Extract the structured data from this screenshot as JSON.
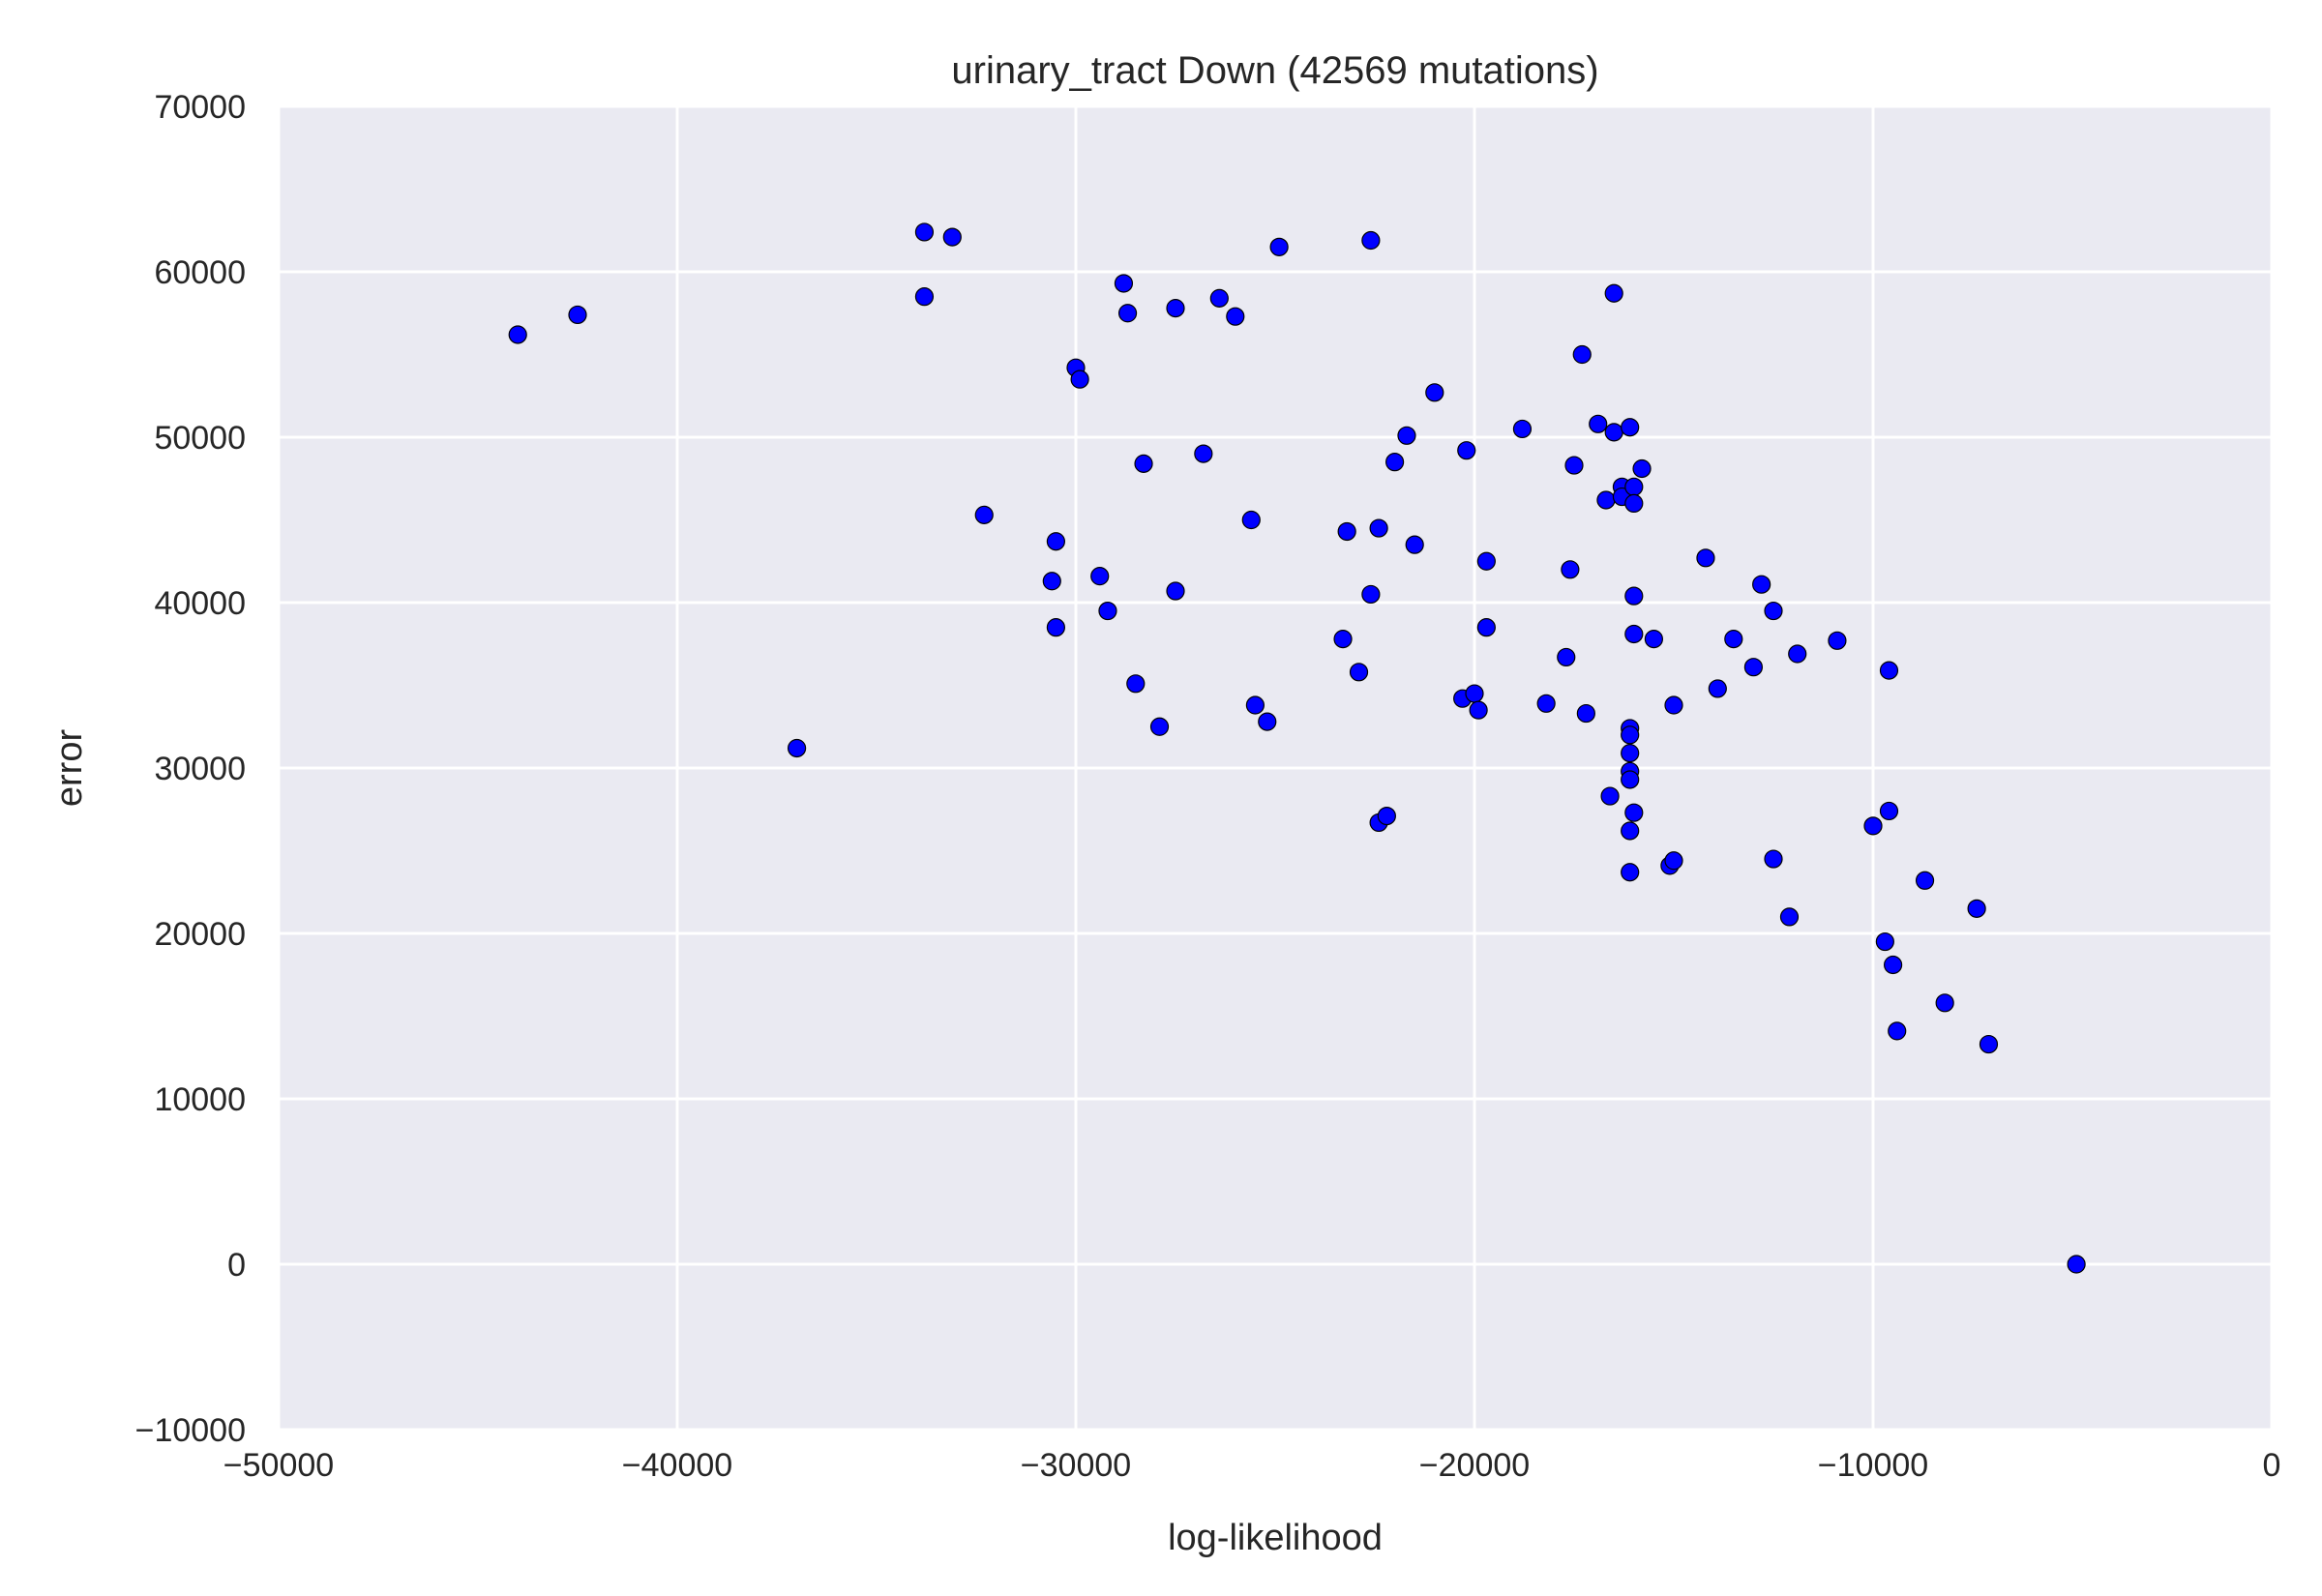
{
  "chart_data": {
    "type": "scatter",
    "title": "urinary_tract Down (42569 mutations)",
    "xlabel": "log-likelihood",
    "ylabel": "error",
    "xlim": [
      -50000,
      0
    ],
    "ylim": [
      -10000,
      70000
    ],
    "xticks": [
      -50000,
      -40000,
      -30000,
      -20000,
      -10000,
      0
    ],
    "yticks": [
      -10000,
      0,
      10000,
      20000,
      30000,
      40000,
      50000,
      60000,
      70000
    ],
    "xtick_labels": [
      "−50000",
      "−40000",
      "−30000",
      "−20000",
      "−10000",
      "0"
    ],
    "ytick_labels": [
      "−10000",
      "0",
      "10000",
      "20000",
      "30000",
      "40000",
      "50000",
      "60000",
      "70000"
    ],
    "grid": true,
    "background_color": "#eaeaf2",
    "point_color": "#0000ff",
    "series": [
      {
        "points": [
          [
            -44000,
            56200
          ],
          [
            -42500,
            57400
          ],
          [
            -37000,
            31200
          ],
          [
            -33800,
            62400
          ],
          [
            -33800,
            58500
          ],
          [
            -33100,
            62100
          ],
          [
            -32300,
            45300
          ],
          [
            -30500,
            43700
          ],
          [
            -30600,
            41300
          ],
          [
            -30500,
            38500
          ],
          [
            -30000,
            54200
          ],
          [
            -29900,
            53500
          ],
          [
            -29400,
            41600
          ],
          [
            -29200,
            39500
          ],
          [
            -28800,
            59300
          ],
          [
            -28700,
            57500
          ],
          [
            -28500,
            35100
          ],
          [
            -28300,
            48400
          ],
          [
            -27900,
            32500
          ],
          [
            -27500,
            57800
          ],
          [
            -27500,
            40700
          ],
          [
            -26800,
            49000
          ],
          [
            -26400,
            58400
          ],
          [
            -26000,
            57300
          ],
          [
            -25600,
            45000
          ],
          [
            -25500,
            33800
          ],
          [
            -25200,
            32800
          ],
          [
            -24900,
            61500
          ],
          [
            -23200,
            44300
          ],
          [
            -23300,
            37800
          ],
          [
            -22900,
            35800
          ],
          [
            -22600,
            61900
          ],
          [
            -22600,
            40500
          ],
          [
            -22400,
            44500
          ],
          [
            -22400,
            26700
          ],
          [
            -22200,
            27100
          ],
          [
            -22000,
            48500
          ],
          [
            -21700,
            50100
          ],
          [
            -21500,
            43500
          ],
          [
            -21000,
            52700
          ],
          [
            -20300,
            34200
          ],
          [
            -20200,
            49200
          ],
          [
            -20000,
            34500
          ],
          [
            -19900,
            33500
          ],
          [
            -19700,
            42500
          ],
          [
            -19700,
            38500
          ],
          [
            -18800,
            50500
          ],
          [
            -18200,
            33900
          ],
          [
            -17700,
            36700
          ],
          [
            -17600,
            42000
          ],
          [
            -17500,
            48300
          ],
          [
            -17300,
            55000
          ],
          [
            -17200,
            33300
          ],
          [
            -16900,
            50800
          ],
          [
            -16700,
            46200
          ],
          [
            -16600,
            28300
          ],
          [
            -16500,
            50300
          ],
          [
            -16500,
            58700
          ],
          [
            -16300,
            47000
          ],
          [
            -16300,
            46400
          ],
          [
            -16100,
            50600
          ],
          [
            -16100,
            32400
          ],
          [
            -16100,
            32000
          ],
          [
            -16100,
            30900
          ],
          [
            -16100,
            29800
          ],
          [
            -16100,
            29300
          ],
          [
            -16100,
            26200
          ],
          [
            -16100,
            23700
          ],
          [
            -16000,
            47000
          ],
          [
            -16000,
            46000
          ],
          [
            -16000,
            40400
          ],
          [
            -16000,
            38100
          ],
          [
            -16000,
            27300
          ],
          [
            -15800,
            48100
          ],
          [
            -15500,
            37800
          ],
          [
            -15100,
            24100
          ],
          [
            -15000,
            24400
          ],
          [
            -15000,
            33800
          ],
          [
            -14200,
            42700
          ],
          [
            -13900,
            34800
          ],
          [
            -13500,
            37800
          ],
          [
            -13000,
            36100
          ],
          [
            -12800,
            41100
          ],
          [
            -12500,
            39500
          ],
          [
            -12500,
            24500
          ],
          [
            -12100,
            21000
          ],
          [
            -11900,
            36900
          ],
          [
            -10900,
            37700
          ],
          [
            -10000,
            26500
          ],
          [
            -9700,
            19500
          ],
          [
            -9600,
            35900
          ],
          [
            -9600,
            27400
          ],
          [
            -9500,
            18100
          ],
          [
            -9400,
            14100
          ],
          [
            -8700,
            23200
          ],
          [
            -8200,
            15800
          ],
          [
            -7400,
            21500
          ],
          [
            -7100,
            13300
          ],
          [
            -4900,
            0
          ]
        ]
      }
    ]
  }
}
